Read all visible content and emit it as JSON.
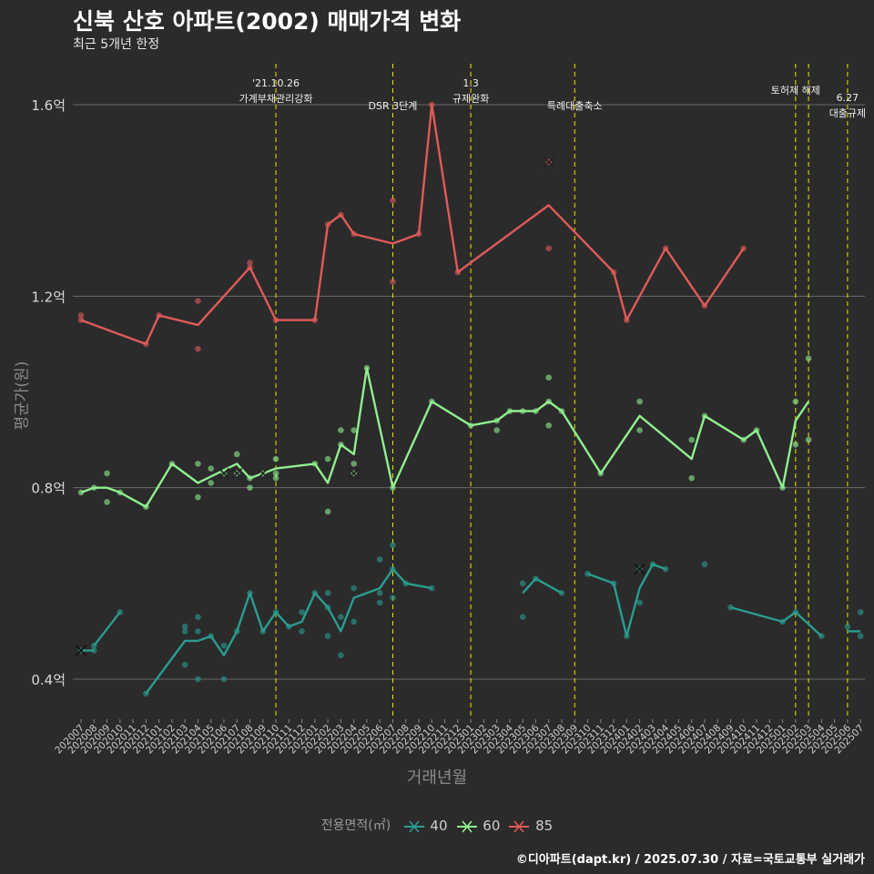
{
  "chart_data": {
    "type": "line",
    "title": "신북 산호 아파트(2002) 매매가격 변화",
    "subtitle": "최근 5개년 한정",
    "xlabel": "거래년월",
    "ylabel": "평균가(원)",
    "legend_title": "전용면적(㎡)",
    "caption": "©디아파트(dapt.kr) / 2025.07.30 / 자료=국토교통부 실거래가",
    "grid": true,
    "legend_position": "bottom",
    "ylim": [
      0.3,
      1.7
    ],
    "y_ticks": [
      {
        "value": 0.4,
        "label": "0.4억"
      },
      {
        "value": 0.8,
        "label": "0.8억"
      },
      {
        "value": 1.2,
        "label": "1.2억"
      },
      {
        "value": 1.6,
        "label": "1.6억"
      }
    ],
    "categories": [
      "202007",
      "202008",
      "202009",
      "202010",
      "202011",
      "202012",
      "202101",
      "202102",
      "202103",
      "202104",
      "202105",
      "202106",
      "202107",
      "202108",
      "202109",
      "202110",
      "202111",
      "202112",
      "202201",
      "202202",
      "202203",
      "202204",
      "202205",
      "202206",
      "202207",
      "202208",
      "202209",
      "202210",
      "202211",
      "202212",
      "202301",
      "202302",
      "202303",
      "202304",
      "202305",
      "202306",
      "202307",
      "202308",
      "202309",
      "202310",
      "202311",
      "202312",
      "202401",
      "202402",
      "202403",
      "202404",
      "202405",
      "202406",
      "202407",
      "202408",
      "202409",
      "202410",
      "202411",
      "202412",
      "202501",
      "202502",
      "202503",
      "202504",
      "202505",
      "202506",
      "202507"
    ],
    "events": [
      {
        "month": "202110",
        "lines": [
          "'21.10.26",
          "가계부채관리강화"
        ]
      },
      {
        "month": "202207",
        "lines": [
          "DSR 3단계"
        ]
      },
      {
        "month": "202301",
        "lines": [
          "1.3",
          "규제완화"
        ]
      },
      {
        "month": "202309",
        "lines": [
          "특례대출축소"
        ]
      },
      {
        "month": "202502",
        "lines": [
          "토허제 해제"
        ]
      },
      {
        "month": "202503",
        "lines": []
      },
      {
        "month": "202506",
        "lines": [
          "6.27",
          "대출규제"
        ]
      }
    ],
    "series": [
      {
        "name": "40",
        "color": "#2a9d8f",
        "line_segments": [
          [
            [
              "202007",
              0.46
            ],
            [
              "202008",
              0.46
            ]
          ],
          [
            [
              "202008",
              0.47
            ],
            [
              "202010",
              0.54
            ]
          ],
          [
            [
              "202012",
              0.37
            ],
            [
              "202103",
              0.48
            ],
            [
              "202104",
              0.48
            ],
            [
              "202105",
              0.49
            ],
            [
              "202106",
              0.45
            ],
            [
              "202107",
              0.5
            ],
            [
              "202108",
              0.58
            ],
            [
              "202109",
              0.5
            ],
            [
              "202110",
              0.54
            ],
            [
              "202111",
              0.51
            ],
            [
              "202112",
              0.52
            ],
            [
              "202201",
              0.58
            ],
            [
              "202202",
              0.55
            ],
            [
              "202203",
              0.5
            ],
            [
              "202204",
              0.57
            ],
            [
              "202206",
              0.59
            ],
            [
              "202207",
              0.63
            ],
            [
              "202208",
              0.6
            ],
            [
              "202210",
              0.59
            ]
          ],
          [
            [
              "202305",
              0.58
            ],
            [
              "202306",
              0.61
            ],
            [
              "202308",
              0.58
            ]
          ],
          [
            [
              "202310",
              0.62
            ],
            [
              "202312",
              0.6
            ],
            [
              "202401",
              0.49
            ],
            [
              "202402",
              0.59
            ],
            [
              "202403",
              0.64
            ],
            [
              "202404",
              0.63
            ]
          ],
          [
            [
              "202409",
              0.55
            ],
            [
              "202501",
              0.52
            ],
            [
              "202502",
              0.54
            ],
            [
              "202504",
              0.49
            ]
          ],
          [
            [
              "202506",
              0.5
            ],
            [
              "202507",
              0.5
            ]
          ]
        ],
        "points": [
          [
            "202007",
            0.46
          ],
          [
            "202008",
            0.47
          ],
          [
            "202008",
            0.46
          ],
          [
            "202010",
            0.54
          ],
          [
            "202012",
            0.37
          ],
          [
            "202103",
            0.51
          ],
          [
            "202103",
            0.5
          ],
          [
            "202103",
            0.43
          ],
          [
            "202104",
            0.53
          ],
          [
            "202104",
            0.5
          ],
          [
            "202104",
            0.4
          ],
          [
            "202105",
            0.49
          ],
          [
            "202106",
            0.47
          ],
          [
            "202106",
            0.4
          ],
          [
            "202107",
            0.5
          ],
          [
            "202108",
            0.58
          ],
          [
            "202109",
            0.5
          ],
          [
            "202110",
            0.54
          ],
          [
            "202111",
            0.51
          ],
          [
            "202112",
            0.54
          ],
          [
            "202112",
            0.5
          ],
          [
            "202201",
            0.58
          ],
          [
            "202202",
            0.58
          ],
          [
            "202202",
            0.55
          ],
          [
            "202202",
            0.49
          ],
          [
            "202203",
            0.53
          ],
          [
            "202203",
            0.45
          ],
          [
            "202204",
            0.59
          ],
          [
            "202204",
            0.52
          ],
          [
            "202206",
            0.65
          ],
          [
            "202206",
            0.58
          ],
          [
            "202206",
            0.56
          ],
          [
            "202207",
            0.68
          ],
          [
            "202207",
            0.63
          ],
          [
            "202207",
            0.57
          ],
          [
            "202208",
            0.6
          ],
          [
            "202210",
            0.59
          ],
          [
            "202305",
            0.6
          ],
          [
            "202305",
            0.53
          ],
          [
            "202306",
            0.61
          ],
          [
            "202308",
            0.58
          ],
          [
            "202310",
            0.62
          ],
          [
            "202312",
            0.6
          ],
          [
            "202401",
            0.49
          ],
          [
            "202402",
            0.63
          ],
          [
            "202402",
            0.56
          ],
          [
            "202403",
            0.64
          ],
          [
            "202404",
            0.63
          ],
          [
            "202407",
            0.64
          ],
          [
            "202409",
            0.55
          ],
          [
            "202501",
            0.52
          ],
          [
            "202502",
            0.54
          ],
          [
            "202504",
            0.49
          ],
          [
            "202506",
            0.51
          ],
          [
            "202507",
            0.54
          ],
          [
            "202507",
            0.49
          ]
        ],
        "cancelled": [
          [
            "202007",
            0.46
          ],
          [
            "202402",
            0.63
          ]
        ]
      },
      {
        "name": "60",
        "color": "#90ee90",
        "line_segments": [
          [
            [
              "202007",
              0.79
            ],
            [
              "202008",
              0.8
            ],
            [
              "202009",
              0.8
            ],
            [
              "202010",
              0.79
            ],
            [
              "202012",
              0.76
            ],
            [
              "202102",
              0.85
            ],
            [
              "202104",
              0.81
            ],
            [
              "202107",
              0.85
            ],
            [
              "202108",
              0.82
            ],
            [
              "202110",
              0.84
            ],
            [
              "202201",
              0.85
            ],
            [
              "202202",
              0.81
            ],
            [
              "202203",
              0.89
            ],
            [
              "202204",
              0.87
            ],
            [
              "202205",
              1.05
            ],
            [
              "202207",
              0.8
            ],
            [
              "202210",
              0.98
            ],
            [
              "202301",
              0.93
            ],
            [
              "202303",
              0.94
            ],
            [
              "202304",
              0.96
            ],
            [
              "202306",
              0.96
            ],
            [
              "202307",
              0.98
            ],
            [
              "202308",
              0.96
            ],
            [
              "202311",
              0.83
            ],
            [
              "202402",
              0.95
            ],
            [
              "202406",
              0.86
            ],
            [
              "202407",
              0.95
            ],
            [
              "202410",
              0.9
            ],
            [
              "202411",
              0.92
            ],
            [
              "202501",
              0.8
            ],
            [
              "202502",
              0.94
            ],
            [
              "202503",
              0.98
            ]
          ]
        ],
        "points": [
          [
            "202007",
            0.79
          ],
          [
            "202008",
            0.8
          ],
          [
            "202009",
            0.83
          ],
          [
            "202009",
            0.77
          ],
          [
            "202010",
            0.79
          ],
          [
            "202012",
            0.76
          ],
          [
            "202102",
            0.85
          ],
          [
            "202104",
            0.85
          ],
          [
            "202104",
            0.78
          ],
          [
            "202105",
            0.84
          ],
          [
            "202105",
            0.81
          ],
          [
            "202106",
            0.83
          ],
          [
            "202107",
            0.87
          ],
          [
            "202107",
            0.83
          ],
          [
            "202108",
            0.82
          ],
          [
            "202108",
            0.8
          ],
          [
            "202109",
            0.83
          ],
          [
            "202110",
            0.86
          ],
          [
            "202110",
            0.83
          ],
          [
            "202110",
            0.82
          ],
          [
            "202201",
            0.85
          ],
          [
            "202202",
            0.86
          ],
          [
            "202202",
            0.75
          ],
          [
            "202203",
            0.92
          ],
          [
            "202203",
            0.89
          ],
          [
            "202204",
            0.92
          ],
          [
            "202204",
            0.85
          ],
          [
            "202204",
            0.83
          ],
          [
            "202205",
            1.05
          ],
          [
            "202207",
            0.8
          ],
          [
            "202210",
            0.98
          ],
          [
            "202301",
            0.93
          ],
          [
            "202303",
            0.94
          ],
          [
            "202303",
            0.92
          ],
          [
            "202304",
            0.96
          ],
          [
            "202305",
            0.96
          ],
          [
            "202306",
            0.96
          ],
          [
            "202307",
            1.03
          ],
          [
            "202307",
            0.98
          ],
          [
            "202307",
            0.93
          ],
          [
            "202308",
            0.96
          ],
          [
            "202311",
            0.83
          ],
          [
            "202402",
            0.98
          ],
          [
            "202402",
            0.92
          ],
          [
            "202406",
            0.9
          ],
          [
            "202406",
            0.82
          ],
          [
            "202407",
            0.95
          ],
          [
            "202410",
            0.9
          ],
          [
            "202411",
            0.92
          ],
          [
            "202501",
            0.8
          ],
          [
            "202502",
            0.98
          ],
          [
            "202502",
            0.89
          ],
          [
            "202503",
            1.07
          ],
          [
            "202503",
            0.9
          ]
        ],
        "cancelled": [
          [
            "202106",
            0.83
          ],
          [
            "202107",
            0.83
          ],
          [
            "202109",
            0.83
          ],
          [
            "202204",
            0.83
          ]
        ]
      },
      {
        "name": "85",
        "color": "#e05a5a",
        "line_segments": [
          [
            [
              "202007",
              1.15
            ],
            [
              "202012",
              1.1
            ],
            [
              "202101",
              1.16
            ],
            [
              "202104",
              1.14
            ],
            [
              "202108",
              1.26
            ],
            [
              "202110",
              1.15
            ],
            [
              "202201",
              1.15
            ],
            [
              "202202",
              1.35
            ],
            [
              "202203",
              1.37
            ],
            [
              "202204",
              1.33
            ],
            [
              "202207",
              1.31
            ],
            [
              "202209",
              1.33
            ],
            [
              "202210",
              1.6
            ],
            [
              "202212",
              1.25
            ],
            [
              "202307",
              1.39
            ],
            [
              "202312",
              1.25
            ],
            [
              "202401",
              1.15
            ],
            [
              "202404",
              1.3
            ],
            [
              "202407",
              1.18
            ],
            [
              "202410",
              1.3
            ]
          ]
        ],
        "points": [
          [
            "202007",
            1.16
          ],
          [
            "202007",
            1.15
          ],
          [
            "202012",
            1.1
          ],
          [
            "202101",
            1.16
          ],
          [
            "202104",
            1.19
          ],
          [
            "202104",
            1.09
          ],
          [
            "202108",
            1.27
          ],
          [
            "202108",
            1.26
          ],
          [
            "202110",
            1.15
          ],
          [
            "202201",
            1.15
          ],
          [
            "202202",
            1.35
          ],
          [
            "202203",
            1.37
          ],
          [
            "202204",
            1.33
          ],
          [
            "202207",
            1.4
          ],
          [
            "202207",
            1.23
          ],
          [
            "202209",
            1.33
          ],
          [
            "202210",
            1.6
          ],
          [
            "202212",
            1.25
          ],
          [
            "202307",
            1.48
          ],
          [
            "202307",
            1.3
          ],
          [
            "202312",
            1.25
          ],
          [
            "202401",
            1.15
          ],
          [
            "202404",
            1.3
          ],
          [
            "202407",
            1.18
          ],
          [
            "202410",
            1.3
          ]
        ],
        "cancelled": [
          [
            "202307",
            1.48
          ]
        ]
      }
    ]
  }
}
